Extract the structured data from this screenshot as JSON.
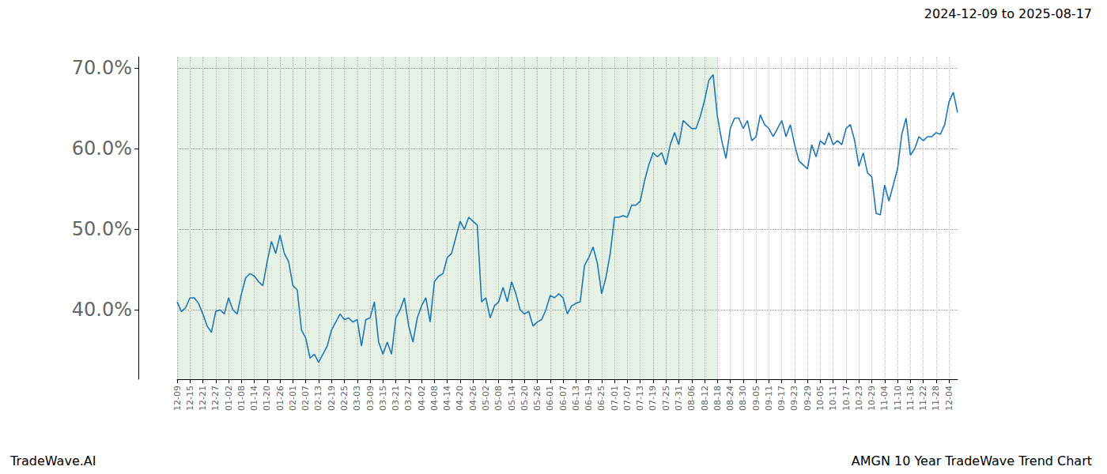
{
  "chart_data": {
    "type": "line",
    "title": "2024-12-09 to 2025-08-17",
    "annotations": [
      "TradeWave.AI",
      "AMGN 10 Year TradeWave Trend Chart"
    ],
    "categories": [
      "12-09",
      null,
      null,
      "12-15",
      null,
      null,
      "12-21",
      null,
      null,
      "12-27",
      null,
      null,
      "01-02",
      null,
      null,
      "01-08",
      null,
      null,
      "01-14",
      null,
      null,
      "01-20",
      null,
      null,
      "01-26",
      null,
      null,
      "02-01",
      null,
      null,
      "02-07",
      null,
      null,
      "02-13",
      null,
      null,
      "02-19",
      null,
      null,
      "02-25",
      null,
      null,
      "03-03",
      null,
      null,
      "03-09",
      null,
      null,
      "03-15",
      null,
      null,
      "03-21",
      null,
      null,
      "03-27",
      null,
      null,
      "04-02",
      null,
      null,
      "04-08",
      null,
      null,
      "04-14",
      null,
      null,
      "04-20",
      null,
      null,
      "04-26",
      null,
      null,
      "05-02",
      null,
      null,
      "05-08",
      null,
      null,
      "05-14",
      null,
      null,
      "05-20",
      null,
      null,
      "05-26",
      null,
      null,
      "06-01",
      null,
      null,
      "06-07",
      null,
      null,
      "06-13",
      null,
      null,
      "06-19",
      null,
      null,
      "06-25",
      null,
      null,
      "07-01",
      null,
      null,
      "07-07",
      null,
      null,
      "07-13",
      null,
      null,
      "07-19",
      null,
      null,
      "07-25",
      null,
      null,
      "07-31",
      null,
      null,
      "08-06",
      null,
      null,
      "08-12",
      null,
      null,
      "08-18",
      null,
      null,
      "08-24",
      null,
      null,
      "08-30",
      null,
      null,
      "09-05",
      null,
      null,
      "09-11",
      null,
      null,
      "09-17",
      null,
      null,
      "09-23",
      null,
      null,
      "09-29",
      null,
      null,
      "10-05",
      null,
      null,
      "10-11",
      null,
      null,
      "10-17",
      null,
      null,
      "10-23",
      null,
      null,
      "10-29",
      null,
      null,
      "11-04",
      null,
      null,
      "11-10",
      null,
      null,
      "11-16",
      null,
      null,
      "11-22",
      null,
      null,
      "11-28",
      null,
      null,
      "12-04",
      null,
      null
    ],
    "values": [
      41,
      39.8,
      40.3,
      41.5,
      41.5,
      40.8,
      39.5,
      38,
      37.2,
      39.8,
      40,
      39.5,
      41.5,
      40,
      39.5,
      42,
      44,
      44.5,
      44.2,
      43.5,
      43,
      46,
      48.5,
      47,
      49.3,
      47,
      46,
      43,
      42.5,
      37.5,
      36.5,
      34,
      34.5,
      33.5,
      34.5,
      35.5,
      37.5,
      38.5,
      39.5,
      38.8,
      39,
      38.5,
      38.8,
      35.5,
      38.8,
      39,
      41,
      36,
      34.5,
      36,
      34.5,
      39,
      40,
      41.5,
      38,
      36,
      39,
      40.5,
      41.5,
      38.5,
      43.5,
      44.2,
      44.5,
      46.5,
      47,
      49,
      51,
      50,
      51.5,
      51,
      50.5,
      41,
      41.5,
      39,
      40.5,
      41,
      42.8,
      41,
      43.5,
      42,
      40,
      39.5,
      39.8,
      38,
      38.5,
      38.8,
      40,
      41.8,
      41.5,
      42,
      41.5,
      39.5,
      40.5,
      40.8,
      41,
      45.5,
      46.5,
      47.8,
      45.8,
      42,
      44,
      47,
      51.5,
      51.5,
      51.7,
      51.5,
      53,
      53,
      53.5,
      56,
      58,
      59.5,
      59,
      59.5,
      58,
      60.5,
      62,
      60.5,
      63.5,
      63,
      62.5,
      62.5,
      64,
      66,
      68.5,
      69.2,
      64,
      61,
      58.8,
      62.5,
      63.8,
      63.8,
      62.5,
      63.5,
      61,
      61.5,
      64.2,
      63,
      62.5,
      61.5,
      62.5,
      63.5,
      61.5,
      63,
      60.5,
      58.5,
      58,
      57.5,
      60.5,
      59,
      61,
      60.5,
      62,
      60.5,
      61,
      60.5,
      62.5,
      63,
      61,
      57.8,
      59.5,
      57,
      56.5,
      52,
      51.8,
      55.5,
      53.5,
      55.5,
      57.5,
      61.8,
      63.8,
      59.2,
      60,
      61.5,
      61,
      61.5,
      61.5,
      62,
      61.8,
      63,
      65.8,
      67,
      64.5
    ],
    "color": "#1f77b4",
    "highlight": [
      "12-09",
      "08-18"
    ],
    "ylim": [
      31.4,
      71.4
    ],
    "yticks": [
      {
        "value": 40,
        "label": "40.0%"
      },
      {
        "value": 50,
        "label": "50.0%"
      },
      {
        "value": 60,
        "label": "60.0%"
      },
      {
        "value": 70,
        "label": "70.0%"
      }
    ],
    "grid": true
  }
}
